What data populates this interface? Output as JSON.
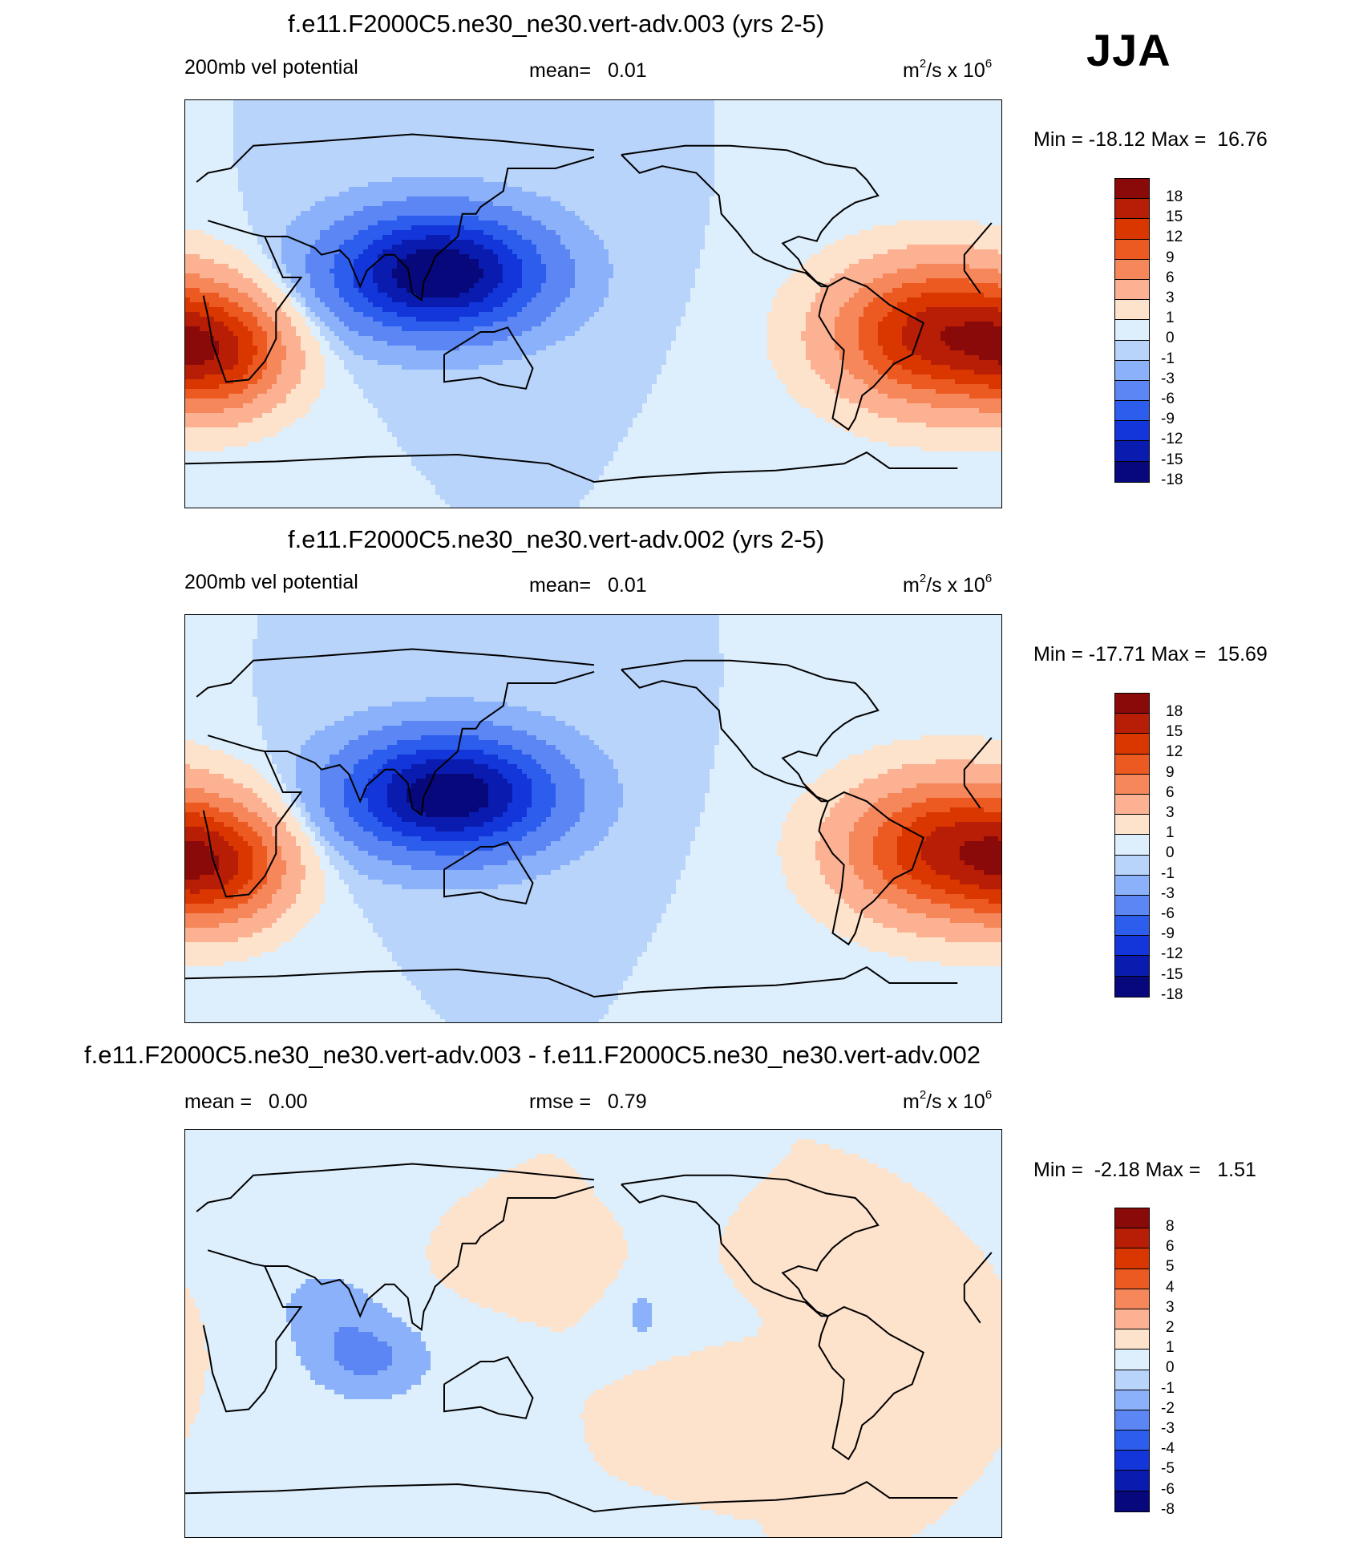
{
  "season": "JJA",
  "units_base": "m",
  "units_sup1": "2",
  "units_mid": "/s x 10",
  "units_sup2": "6",
  "panels": [
    {
      "title": "f.e11.F2000C5.ne30_ne30.vert-adv.003 (yrs 2-5)",
      "left_label": "200mb vel potential",
      "center_label": "mean=   0.01",
      "minmax": "Min = -18.12 Max =  16.76",
      "ticks": [
        "18",
        "15",
        "12",
        "9",
        "6",
        "3",
        "1",
        "0",
        "-1",
        "-3",
        "-6",
        "-9",
        "-12",
        "-15",
        "-18"
      ],
      "field": {
        "centers": [
          {
            "lon": 110,
            "lat": 15,
            "amp": -18.12,
            "sx": 45,
            "sy": 25
          },
          {
            "lon": -30,
            "lat": -12,
            "amp": 16.76,
            "sx": 45,
            "sy": 30
          },
          {
            "lon": 15,
            "lat": -20,
            "amp": 12,
            "sx": 30,
            "sy": 25
          }
        ]
      }
    },
    {
      "title": "f.e11.F2000C5.ne30_ne30.vert-adv.002 (yrs 2-5)",
      "left_label": "200mb vel potential",
      "center_label": "mean=   0.01",
      "minmax": "Min = -17.71 Max =  15.69",
      "ticks": [
        "18",
        "15",
        "12",
        "9",
        "6",
        "3",
        "1",
        "0",
        "-1",
        "-3",
        "-6",
        "-9",
        "-12",
        "-15",
        "-18"
      ],
      "field": {
        "centers": [
          {
            "lon": 115,
            "lat": 12,
            "amp": -17.71,
            "sx": 45,
            "sy": 25
          },
          {
            "lon": -25,
            "lat": -12,
            "amp": 15.69,
            "sx": 45,
            "sy": 30
          },
          {
            "lon": 15,
            "lat": -20,
            "amp": 11,
            "sx": 30,
            "sy": 25
          }
        ]
      }
    },
    {
      "title": "f.e11.F2000C5.ne30_ne30.vert-adv.003 - f.e11.F2000C5.ne30_ne30.vert-adv.002",
      "left_label": "mean =   0.00",
      "center_label": "rmse =   0.79",
      "minmax": "Min =  -2.18 Max =   1.51",
      "ticks": [
        "8",
        "6",
        "5",
        "4",
        "3",
        "2",
        "1",
        "0",
        "-1",
        "-2",
        "-3",
        "-4",
        "-5",
        "-6",
        "-8"
      ],
      "field": {
        "centers": [
          {
            "lon": 80,
            "lat": -10,
            "amp": -2.18,
            "sx": 30,
            "sy": 20
          },
          {
            "lon": 60,
            "lat": 15,
            "amp": -1.3,
            "sx": 25,
            "sy": 20
          },
          {
            "lon": -160,
            "lat": 10,
            "amp": -1.2,
            "sx": 12,
            "sy": 18
          },
          {
            "lon": 155,
            "lat": 30,
            "amp": 1.51,
            "sx": 25,
            "sy": 10
          },
          {
            "lon": -30,
            "lat": -5,
            "amp": 1.3,
            "sx": 18,
            "sy": 15
          },
          {
            "lon": -150,
            "lat": -25,
            "amp": 1.2,
            "sx": 12,
            "sy": 10
          }
        ]
      }
    }
  ],
  "colormap": [
    "#8a0a0a",
    "#b81d05",
    "#d93600",
    "#ec5a22",
    "#f5875a",
    "#fbb192",
    "#fde2cc",
    "#ddeefc",
    "#b9d4fb",
    "#8ab1f9",
    "#5b86f4",
    "#2c5ded",
    "#1236d9",
    "#0a1cb0",
    "#07087c"
  ]
}
